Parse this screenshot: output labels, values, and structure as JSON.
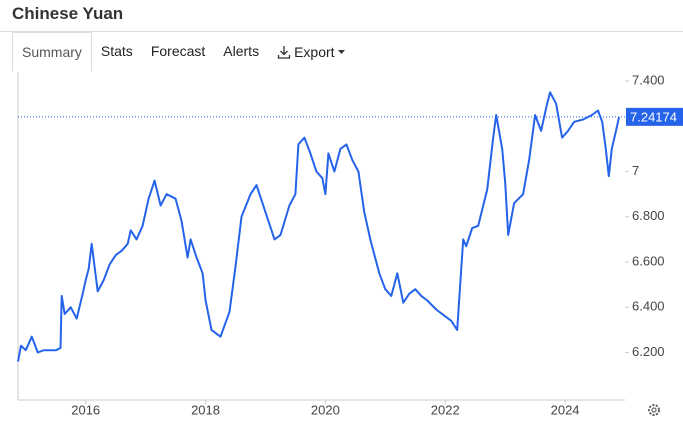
{
  "header": {
    "title": "Chinese Yuan"
  },
  "tabs": [
    "Summary",
    "Stats",
    "Forecast",
    "Alerts",
    "Export"
  ],
  "chart_data": {
    "type": "line",
    "color": "#2563eb",
    "x": [
      2014.87,
      2014.92,
      2015.0,
      2015.1,
      2015.2,
      2015.3,
      2015.5,
      2015.58,
      2015.6,
      2015.65,
      2015.75,
      2015.85,
      2015.95,
      2016.0,
      2016.05,
      2016.1,
      2016.2,
      2016.3,
      2016.4,
      2016.5,
      2016.6,
      2016.7,
      2016.75,
      2016.85,
      2016.95,
      2017.05,
      2017.15,
      2017.25,
      2017.35,
      2017.5,
      2017.6,
      2017.7,
      2017.75,
      2017.85,
      2017.95,
      2018.0,
      2018.1,
      2018.25,
      2018.4,
      2018.5,
      2018.6,
      2018.75,
      2018.85,
      2018.95,
      2019.05,
      2019.15,
      2019.25,
      2019.4,
      2019.5,
      2019.55,
      2019.65,
      2019.75,
      2019.85,
      2019.95,
      2020.0,
      2020.05,
      2020.15,
      2020.25,
      2020.35,
      2020.45,
      2020.55,
      2020.65,
      2020.75,
      2020.9,
      2021.0,
      2021.1,
      2021.2,
      2021.3,
      2021.4,
      2021.5,
      2021.6,
      2021.7,
      2021.85,
      2022.0,
      2022.1,
      2022.2,
      2022.3,
      2022.35,
      2022.45,
      2022.55,
      2022.7,
      2022.8,
      2022.85,
      2022.95,
      2023.0,
      2023.05,
      2023.15,
      2023.3,
      2023.4,
      2023.5,
      2023.6,
      2023.7,
      2023.75,
      2023.85,
      2023.95,
      2024.05,
      2024.15,
      2024.3,
      2024.45,
      2024.55,
      2024.62,
      2024.68,
      2024.73,
      2024.78,
      2024.85,
      2024.9
    ],
    "values": [
      6.16,
      6.23,
      6.21,
      6.27,
      6.2,
      6.21,
      6.21,
      6.22,
      6.45,
      6.37,
      6.4,
      6.35,
      6.46,
      6.52,
      6.57,
      6.68,
      6.47,
      6.52,
      6.59,
      6.63,
      6.65,
      6.68,
      6.74,
      6.7,
      6.76,
      6.88,
      6.96,
      6.85,
      6.9,
      6.88,
      6.78,
      6.62,
      6.7,
      6.62,
      6.55,
      6.43,
      6.3,
      6.27,
      6.38,
      6.58,
      6.8,
      6.9,
      6.94,
      6.86,
      6.78,
      6.7,
      6.72,
      6.85,
      6.9,
      7.12,
      7.15,
      7.08,
      7.0,
      6.97,
      6.9,
      7.08,
      7.0,
      7.1,
      7.12,
      7.05,
      7.0,
      6.82,
      6.7,
      6.55,
      6.48,
      6.45,
      6.55,
      6.42,
      6.46,
      6.48,
      6.45,
      6.43,
      6.39,
      6.36,
      6.34,
      6.3,
      6.7,
      6.67,
      6.75,
      6.76,
      6.92,
      7.15,
      7.25,
      7.1,
      6.95,
      6.72,
      6.86,
      6.9,
      7.05,
      7.25,
      7.18,
      7.3,
      7.35,
      7.3,
      7.15,
      7.18,
      7.22,
      7.23,
      7.25,
      7.27,
      7.22,
      7.1,
      6.98,
      7.1,
      7.18,
      7.24
    ],
    "last_value": 7.24174,
    "xlim": [
      2014.87,
      2025.0
    ],
    "ylim": [
      5.99,
      7.44
    ],
    "xticks": [
      2016,
      2018,
      2020,
      2022,
      2024
    ],
    "yticks": [
      {
        "value": 6.2,
        "label": "6.200"
      },
      {
        "value": 6.4,
        "label": "6.400"
      },
      {
        "value": 6.6,
        "label": "6.600"
      },
      {
        "value": 6.8,
        "label": "6.800"
      },
      7,
      {
        "value": 7.4,
        "label": "7.400"
      }
    ]
  }
}
